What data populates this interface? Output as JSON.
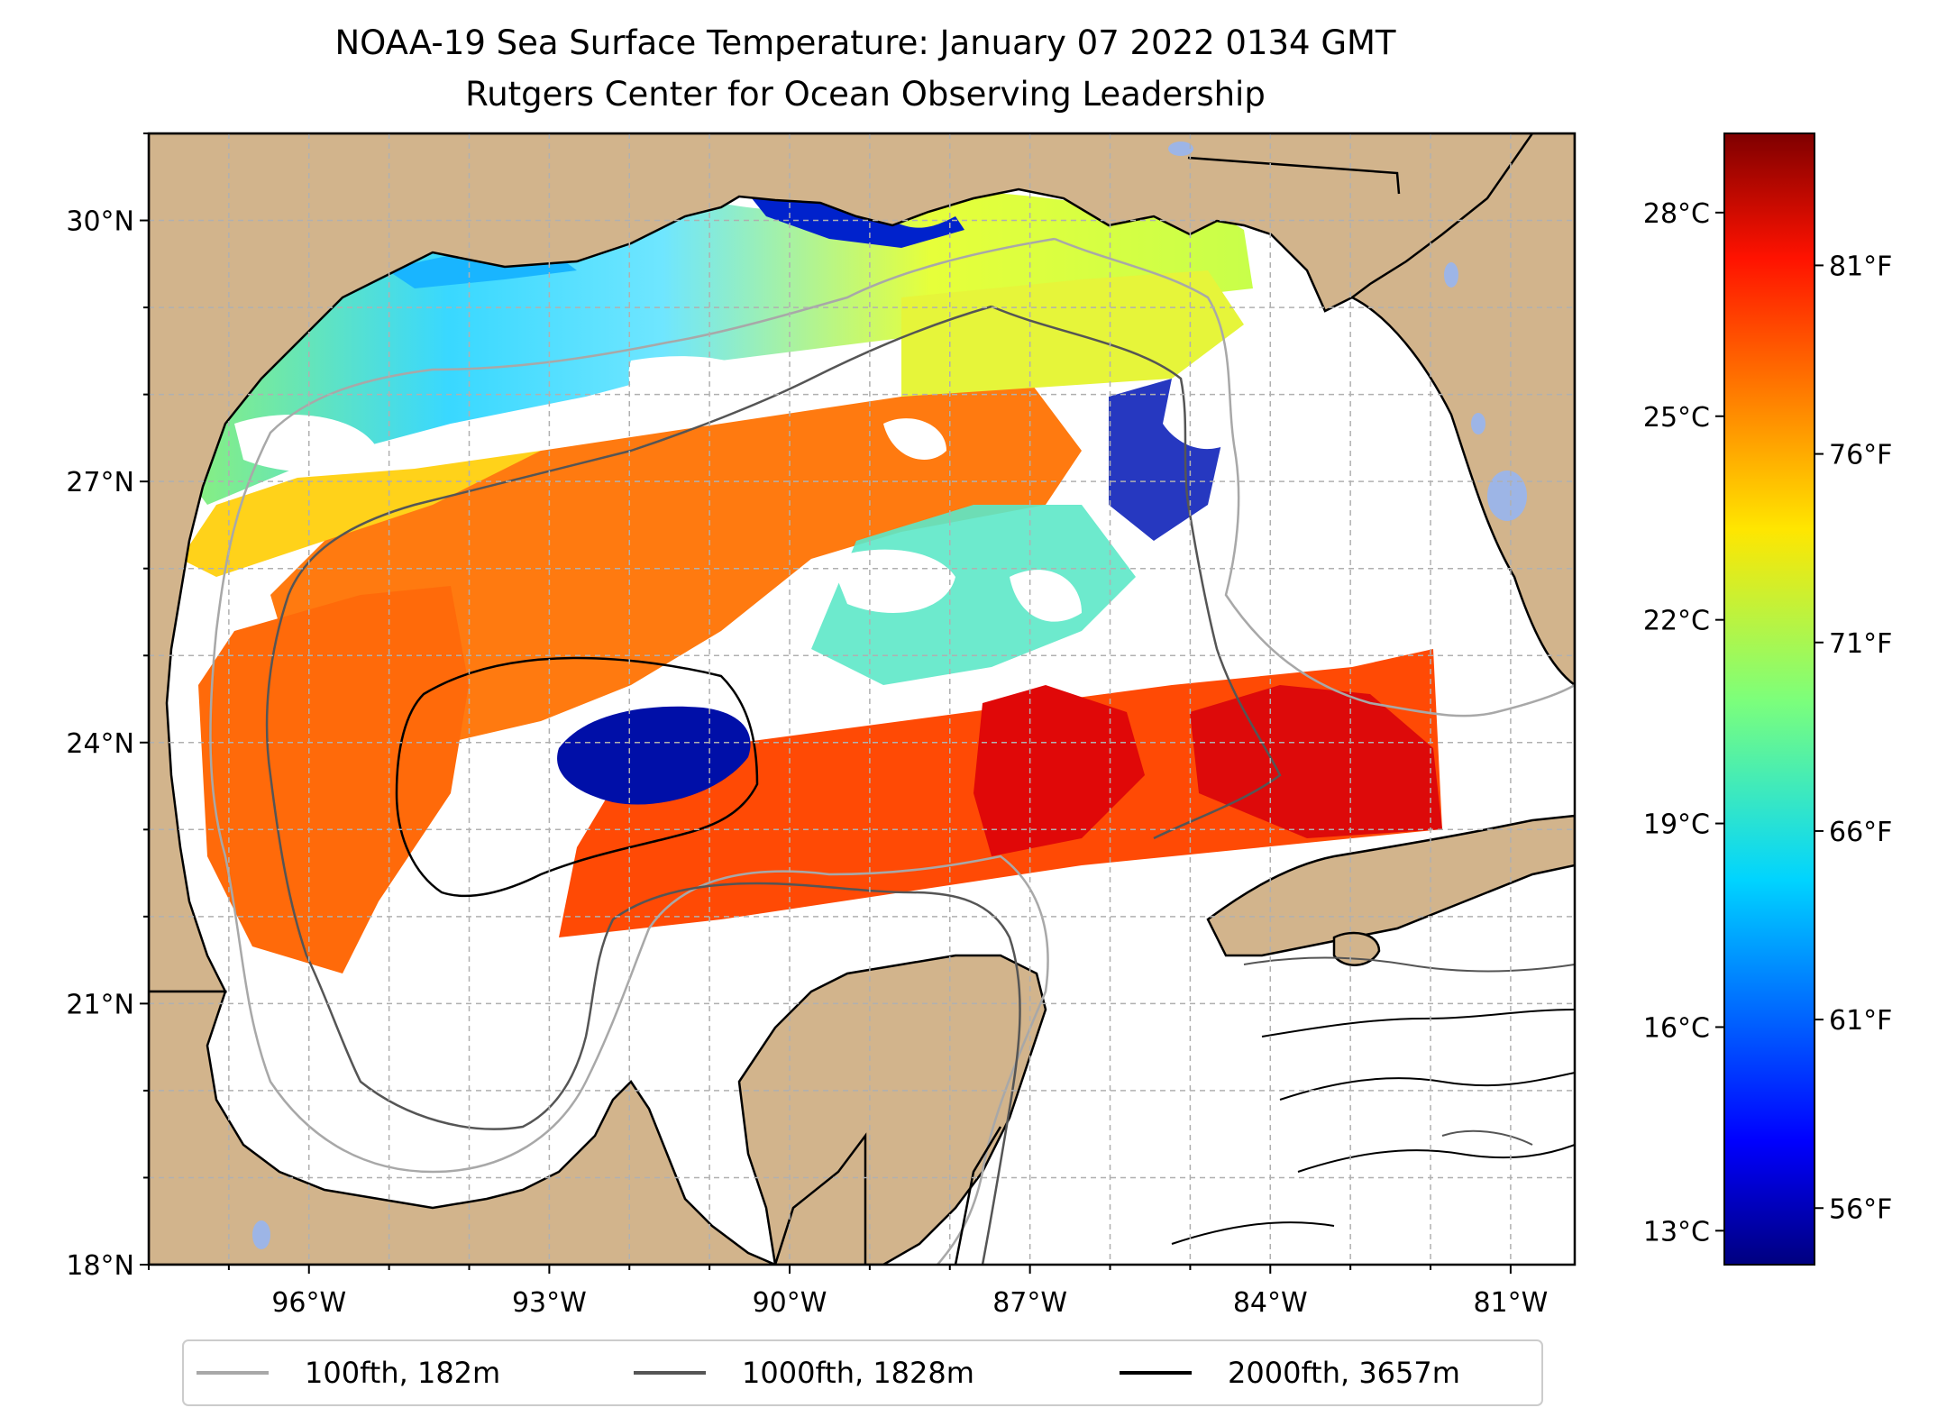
{
  "title": {
    "line1": "NOAA-19 Sea Surface Temperature: January 07 2022 0134 GMT",
    "line2": "Rutgers Center for Ocean Observing Leadership"
  },
  "map": {
    "lon_range": [
      -98,
      -80.2
    ],
    "lat_range": [
      18,
      31
    ],
    "lat_ticks": [
      "30°N",
      "27°N",
      "24°N",
      "21°N",
      "18°N"
    ],
    "lat_tick_values": [
      30,
      27,
      24,
      21,
      18
    ],
    "lon_ticks": [
      "96°W",
      "93°W",
      "90°W",
      "87°W",
      "84°W",
      "81°W"
    ],
    "lon_tick_values": [
      -96,
      -93,
      -90,
      -87,
      -84,
      -81
    ],
    "gridlines": "dashed gray, every 1 degree",
    "land_color": "#d2b48c",
    "water_color": "#ffffff",
    "lake_color": "#9db5e6"
  },
  "colorbar": {
    "colormap": "jet",
    "celsius_ticks": [
      "28°C",
      "25°C",
      "22°C",
      "19°C",
      "16°C",
      "13°C"
    ],
    "celsius_values": [
      28,
      25,
      22,
      19,
      16,
      13
    ],
    "fahrenheit_ticks": [
      "81°F",
      "76°F",
      "71°F",
      "66°F",
      "61°F",
      "56°F"
    ],
    "fahrenheit_values": [
      81,
      76,
      71,
      66,
      61,
      56
    ],
    "range_f": [
      54.5,
      84.5
    ]
  },
  "legend": {
    "items": [
      {
        "label": "100fth, 182m",
        "color": "#a8a8a8"
      },
      {
        "label": "1000fth, 1828m",
        "color": "#555555"
      },
      {
        "label": "2000fth, 3657m",
        "color": "#000000"
      }
    ]
  }
}
